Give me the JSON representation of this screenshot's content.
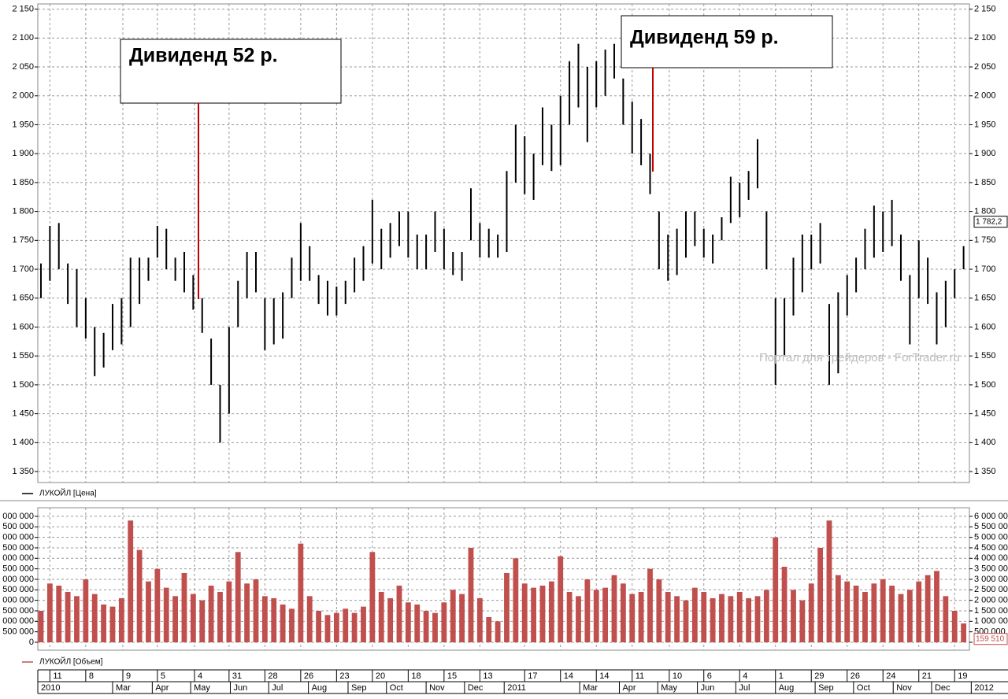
{
  "chart_data": [
    {
      "type": "range_bar",
      "x": [
        "2010-01-04",
        "2010-01-11",
        "2010-01-18",
        "2010-01-25",
        "2010-02-01",
        "2010-02-08",
        "2010-02-15",
        "2010-02-22",
        "2010-03-01",
        "2010-03-08",
        "2010-03-15",
        "2010-03-22",
        "2010-03-29",
        "2010-04-05",
        "2010-04-12",
        "2010-04-19",
        "2010-04-26",
        "2010-05-03",
        "2010-05-10",
        "2010-05-17",
        "2010-05-24",
        "2010-05-31",
        "2010-06-07",
        "2010-06-14",
        "2010-06-21",
        "2010-06-28",
        "2010-07-05",
        "2010-07-12",
        "2010-07-19",
        "2010-07-26",
        "2010-08-02",
        "2010-08-09",
        "2010-08-16",
        "2010-08-23",
        "2010-08-30",
        "2010-09-06",
        "2010-09-13",
        "2010-09-20",
        "2010-09-27",
        "2010-10-04",
        "2010-10-11",
        "2010-10-18",
        "2010-10-25",
        "2010-11-01",
        "2010-11-08",
        "2010-11-15",
        "2010-11-22",
        "2010-11-29",
        "2010-12-06",
        "2010-12-13",
        "2010-12-20",
        "2010-12-27",
        "2011-01-03",
        "2011-01-10",
        "2011-01-17",
        "2011-01-24",
        "2011-01-31",
        "2011-02-07",
        "2011-02-14",
        "2011-02-21",
        "2011-02-28",
        "2011-03-07",
        "2011-03-14",
        "2011-03-21",
        "2011-03-28",
        "2011-04-04",
        "2011-04-11",
        "2011-04-18",
        "2011-04-25",
        "2011-05-02",
        "2011-05-09",
        "2011-05-16",
        "2011-05-23",
        "2011-05-30",
        "2011-06-06",
        "2011-06-13",
        "2011-06-20",
        "2011-06-27",
        "2011-07-04",
        "2011-07-11",
        "2011-07-18",
        "2011-07-25",
        "2011-08-01",
        "2011-08-08",
        "2011-08-15",
        "2011-08-22",
        "2011-08-29",
        "2011-09-05",
        "2011-09-12",
        "2011-09-19",
        "2011-09-26",
        "2011-10-03",
        "2011-10-10",
        "2011-10-17",
        "2011-10-24",
        "2011-10-31",
        "2011-11-07",
        "2011-11-14",
        "2011-11-21",
        "2011-11-28",
        "2011-12-05",
        "2011-12-12",
        "2011-12-19",
        "2011-12-26"
      ],
      "series": [
        {
          "name": "ЛУКОЙЛ [Цена]",
          "color": "#000000",
          "high": [
            1710,
            1775,
            1780,
            1710,
            1700,
            1650,
            1600,
            1590,
            1640,
            1650,
            1720,
            1720,
            1720,
            1775,
            1770,
            1720,
            1730,
            1690,
            1650,
            1580,
            1500,
            1600,
            1680,
            1730,
            1730,
            1650,
            1650,
            1660,
            1720,
            1780,
            1740,
            1690,
            1680,
            1670,
            1680,
            1720,
            1740,
            1820,
            1770,
            1780,
            1800,
            1800,
            1760,
            1760,
            1800,
            1770,
            1730,
            1730,
            1840,
            1780,
            1770,
            1760,
            1870,
            1950,
            1930,
            1900,
            1980,
            1950,
            2000,
            2060,
            2090,
            2050,
            2060,
            2080,
            2090,
            2030,
            1990,
            1960,
            1900,
            1800,
            1760,
            1770,
            1800,
            1800,
            1770,
            1760,
            1790,
            1860,
            1850,
            1870,
            1925,
            1800,
            1650,
            1650,
            1720,
            1760,
            1760,
            1780,
            1640,
            1660,
            1690,
            1720,
            1770,
            1810,
            1800,
            1820,
            1760,
            1690,
            1750,
            1720,
            1660,
            1680,
            1700,
            1740
          ],
          "low": [
            1650,
            1680,
            1700,
            1640,
            1600,
            1580,
            1515,
            1530,
            1560,
            1570,
            1600,
            1640,
            1680,
            1720,
            1700,
            1680,
            1660,
            1630,
            1590,
            1500,
            1400,
            1450,
            1600,
            1650,
            1660,
            1560,
            1570,
            1580,
            1650,
            1680,
            1680,
            1640,
            1620,
            1620,
            1640,
            1660,
            1680,
            1710,
            1700,
            1720,
            1740,
            1720,
            1700,
            1700,
            1730,
            1700,
            1690,
            1680,
            1750,
            1720,
            1720,
            1720,
            1730,
            1850,
            1830,
            1820,
            1880,
            1870,
            1880,
            1950,
            1980,
            1920,
            1980,
            2000,
            2030,
            1950,
            1900,
            1880,
            1830,
            1700,
            1680,
            1690,
            1720,
            1740,
            1720,
            1710,
            1750,
            1780,
            1790,
            1820,
            1840,
            1700,
            1500,
            1550,
            1620,
            1660,
            1700,
            1710,
            1500,
            1520,
            1620,
            1660,
            1700,
            1720,
            1730,
            1740,
            1680,
            1570,
            1650,
            1640,
            1570,
            1600,
            1650,
            1700
          ]
        }
      ],
      "last_value": {
        "value": 1782.2,
        "label": "1 782,2"
      },
      "ylim": [
        1331,
        2159
      ],
      "yticks": [
        {
          "value": 1350,
          "label": "1 350"
        },
        {
          "value": 1400,
          "label": "1 400"
        },
        {
          "value": 1450,
          "label": "1 450"
        },
        {
          "value": 1500,
          "label": "1 500"
        },
        {
          "value": 1550,
          "label": "1 550"
        },
        {
          "value": 1600,
          "label": "1 600"
        },
        {
          "value": 1650,
          "label": "1 650"
        },
        {
          "value": 1700,
          "label": "1 700"
        },
        {
          "value": 1750,
          "label": "1 750"
        },
        {
          "value": 1800,
          "label": "1 800"
        },
        {
          "value": 1850,
          "label": "1 850"
        },
        {
          "value": 1900,
          "label": "1 900"
        },
        {
          "value": 1950,
          "label": "1 950"
        },
        {
          "value": 2000,
          "label": "2 000"
        },
        {
          "value": 2050,
          "label": "2 050"
        },
        {
          "value": 2100,
          "label": "2 100"
        },
        {
          "value": 2150,
          "label": "2 150"
        }
      ],
      "grid": true,
      "annotations": [
        "Дивиденд 52 р.",
        "Дивиденд 59 р."
      ],
      "watermark": "Портал для трейдеров - ForTrader.ru"
    },
    {
      "type": "bar",
      "series": [
        {
          "name": "ЛУКОЙЛ [Объем]",
          "color": "#c0504d",
          "values": [
            1500000,
            2800000,
            2700000,
            2400000,
            2200000,
            3000000,
            2300000,
            1800000,
            1700000,
            2100000,
            5800000,
            4400000,
            2900000,
            3500000,
            2600000,
            2200000,
            3300000,
            2300000,
            2000000,
            2700000,
            2400000,
            2900000,
            4300000,
            2800000,
            3000000,
            2200000,
            2100000,
            1800000,
            1600000,
            4700000,
            2200000,
            1500000,
            1300000,
            1400000,
            1600000,
            1400000,
            1700000,
            4300000,
            2400000,
            2100000,
            2700000,
            1900000,
            1800000,
            1500000,
            1400000,
            1900000,
            2500000,
            2300000,
            4500000,
            2100000,
            1200000,
            1000000,
            3300000,
            4000000,
            2800000,
            2600000,
            2700000,
            2900000,
            4100000,
            2400000,
            2200000,
            3000000,
            2500000,
            2600000,
            3200000,
            2800000,
            2300000,
            2400000,
            3500000,
            3000000,
            2400000,
            2200000,
            2000000,
            2600000,
            2400000,
            2100000,
            2300000,
            2200000,
            2400000,
            2100000,
            2200000,
            2500000,
            5000000,
            3600000,
            2500000,
            2000000,
            2800000,
            4500000,
            5800000,
            3200000,
            2900000,
            2700000,
            2400000,
            2800000,
            3000000,
            2700000,
            2300000,
            2500000,
            2900000,
            3200000,
            3400000,
            2200000,
            1500000,
            900000
          ]
        }
      ],
      "last_value": {
        "value": 159510,
        "label": "159 510"
      },
      "ylim": [
        -375000,
        6410000
      ],
      "yticks": [
        0,
        {
          "value": 500000,
          "label": "500 000"
        },
        {
          "value": 1000000,
          "label": "1 000 000"
        },
        {
          "value": 1500000,
          "label": "1 500 000"
        },
        {
          "value": 2000000,
          "label": "2 000 000"
        },
        {
          "value": 2500000,
          "label": "2 500 000"
        },
        {
          "value": 3000000,
          "label": "3 000 000"
        },
        {
          "value": 3500000,
          "label": "3 500 000"
        },
        {
          "value": 4000000,
          "label": "4 000 000"
        },
        {
          "value": 4500000,
          "label": "4 500 000"
        },
        {
          "value": 5000000,
          "label": "5 000 000"
        },
        {
          "value": 5500000,
          "label": "5 500 000"
        },
        {
          "value": 6000000,
          "label": "6 000 000"
        }
      ],
      "grid": true,
      "day_ticks": [
        {
          "value": "2010-01-11",
          "label": "11"
        },
        {
          "value": "2010-02-08",
          "label": "8"
        },
        {
          "value": "2010-03-09",
          "label": "9"
        },
        {
          "value": "2010-04-05",
          "label": "5"
        },
        {
          "value": "2010-05-04",
          "label": "4"
        },
        {
          "value": "2010-05-31",
          "label": "31"
        },
        {
          "value": "2010-06-28",
          "label": "28"
        },
        {
          "value": "2010-07-26",
          "label": "26"
        },
        {
          "value": "2010-08-23",
          "label": "23"
        },
        {
          "value": "2010-09-20",
          "label": "20"
        },
        {
          "value": "2010-10-18",
          "label": "18"
        },
        {
          "value": "2010-11-15",
          "label": "15"
        },
        {
          "value": "2010-12-13",
          "label": "13"
        },
        {
          "value": "2011-01-17",
          "label": "17"
        },
        {
          "value": "2011-02-14",
          "label": "14"
        },
        {
          "value": "2011-03-14",
          "label": "14"
        },
        {
          "value": "2011-04-11",
          "label": "11"
        },
        {
          "value": "2011-05-10",
          "label": "10"
        },
        {
          "value": "2011-06-06",
          "label": "6"
        },
        {
          "value": "2011-07-04",
          "label": "4"
        },
        {
          "value": "2011-08-01",
          "label": "1"
        },
        {
          "value": "2011-08-29",
          "label": "29"
        },
        {
          "value": "2011-09-26",
          "label": "26"
        },
        {
          "value": "2011-10-24",
          "label": "24"
        },
        {
          "value": "2011-11-21",
          "label": "21"
        },
        {
          "value": "2011-12-19",
          "label": "19"
        }
      ],
      "month_ticks": [
        {
          "value": "2010-01",
          "label": "2010"
        },
        {
          "value": "2010-03",
          "label": "Mar"
        },
        {
          "value": "2010-04",
          "label": "Apr"
        },
        {
          "value": "2010-05",
          "label": "May"
        },
        {
          "value": "2010-06",
          "label": "Jun"
        },
        {
          "value": "2010-07",
          "label": "Jul"
        },
        {
          "value": "2010-08",
          "label": "Aug"
        },
        {
          "value": "2010-09",
          "label": "Sep"
        },
        {
          "value": "2010-10",
          "label": "Oct"
        },
        {
          "value": "2010-11",
          "label": "Nov"
        },
        {
          "value": "2010-12",
          "label": "Dec"
        },
        {
          "value": "2011-01",
          "label": "2011"
        },
        {
          "value": "2011-03",
          "label": "Mar"
        },
        {
          "value": "2011-04",
          "label": "Apr"
        },
        {
          "value": "2011-05",
          "label": "May"
        },
        {
          "value": "2011-06",
          "label": "Jun"
        },
        {
          "value": "2011-07",
          "label": "Jul"
        },
        {
          "value": "2011-08",
          "label": "Aug"
        },
        {
          "value": "2011-09",
          "label": "Sep"
        },
        {
          "value": "2011-10",
          "label": "Oct"
        },
        {
          "value": "2011-11",
          "label": "Nov"
        },
        {
          "value": "2011-12",
          "label": "Dec"
        },
        {
          "value": "2012-01",
          "label": "2012"
        }
      ]
    }
  ]
}
